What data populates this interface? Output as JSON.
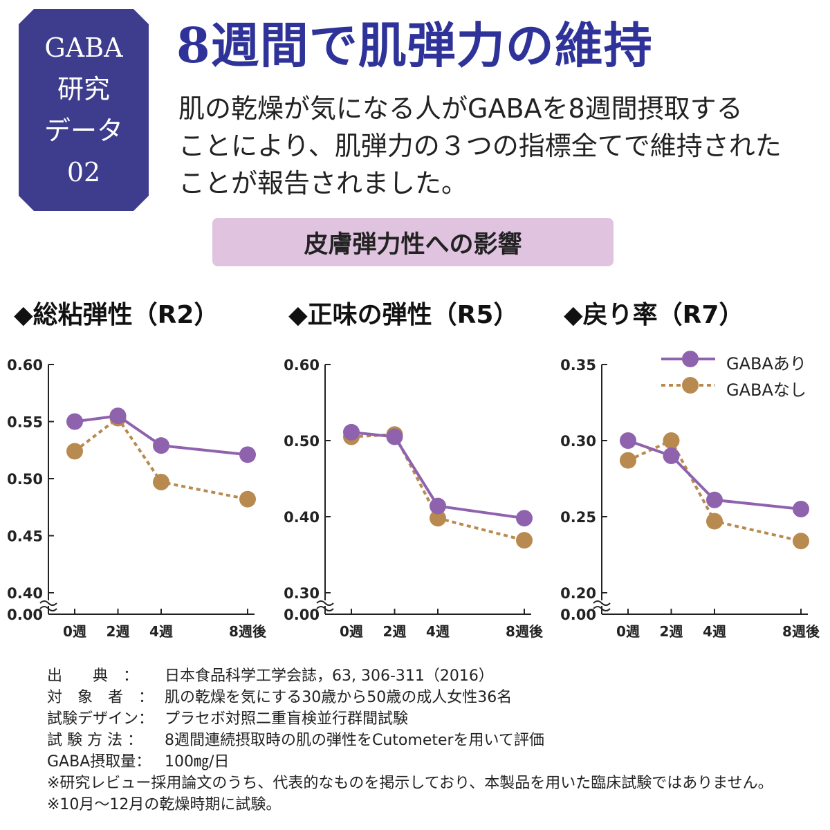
{
  "badge": {
    "line1": "GABA",
    "line2": "研究",
    "line3": "データ",
    "line4": "02"
  },
  "title": "8週間で肌弾力の維持",
  "description": {
    "line1": "肌の乾燥が気になる人がGABAを8週間摂取する",
    "line2": "ことにより、肌弾力の３つの指標全てで維持された",
    "line3": "ことが報告されました。"
  },
  "banner": "皮膚弾力性への影響",
  "colors": {
    "gaba": "#8f62ad",
    "no_gaba": "#b88a4f",
    "badge": "#3d3c8d",
    "title": "#2f3399",
    "banner": "#dfc3df"
  },
  "legend": {
    "series1": "GABAあり",
    "series2": "GABAなし"
  },
  "chart_data": [
    {
      "type": "line",
      "title": "◆総粘弾性（R2）",
      "categories": [
        "0週",
        "2週",
        "4週",
        "8週後"
      ],
      "x": [
        0,
        2,
        4,
        8
      ],
      "yticks": [
        "0.60",
        "0.55",
        "0.50",
        "0.45",
        "0.40",
        "0.00"
      ],
      "ylim": [
        0.4,
        0.6
      ],
      "axis_break": true,
      "series": [
        {
          "name": "GABAあり",
          "values": [
            0.55,
            0.555,
            0.529,
            0.521
          ]
        },
        {
          "name": "GABAなし",
          "values": [
            0.524,
            0.553,
            0.497,
            0.482
          ]
        }
      ]
    },
    {
      "type": "line",
      "title": "◆正味の弾性（R5）",
      "categories": [
        "0週",
        "2週",
        "4週",
        "8週後"
      ],
      "x": [
        0,
        2,
        4,
        8
      ],
      "yticks": [
        "0.60",
        "0.50",
        "0.40",
        "0.30",
        "0.00"
      ],
      "ylim": [
        0.3,
        0.6
      ],
      "axis_break": true,
      "series": [
        {
          "name": "GABAあり",
          "values": [
            0.511,
            0.505,
            0.414,
            0.398
          ]
        },
        {
          "name": "GABAなし",
          "values": [
            0.505,
            0.508,
            0.398,
            0.369
          ]
        }
      ]
    },
    {
      "type": "line",
      "title": "◆戻り率（R7）",
      "categories": [
        "0週",
        "2週",
        "4週",
        "8週後"
      ],
      "x": [
        0,
        2,
        4,
        8
      ],
      "yticks": [
        "0.35",
        "0.30",
        "0.25",
        "0.20",
        "0.00"
      ],
      "ylim": [
        0.2,
        0.35
      ],
      "axis_break": true,
      "series": [
        {
          "name": "GABAあり",
          "values": [
            0.3,
            0.29,
            0.261,
            0.255
          ]
        },
        {
          "name": "GABAなし",
          "values": [
            0.287,
            0.3,
            0.247,
            0.234
          ]
        }
      ]
    }
  ],
  "footer": {
    "rows": [
      {
        "label": "出　　典　：",
        "value": "日本食品科学工学会誌，63, 306-311（2016）"
      },
      {
        "label": "対　象　者　：",
        "value": "肌の乾燥を気にする30歳から50歳の成人女性36名"
      },
      {
        "label": "試験デザイン：",
        "value": "プラセボ対照二重盲検並行群間試験"
      },
      {
        "label": "試 験 方 法 ：",
        "value": "8週間連続摂取時の肌の弾性をCutometerを用いて評価"
      },
      {
        "label": "GABA摂取量：",
        "value": "100㎎/日"
      }
    ],
    "note1": "※研究レビュー採用論文のうち、代表的なものを掲示しており、本製品を用いた臨床試験ではありません。",
    "note2": "※10月～12月の乾燥時期に試験。"
  }
}
